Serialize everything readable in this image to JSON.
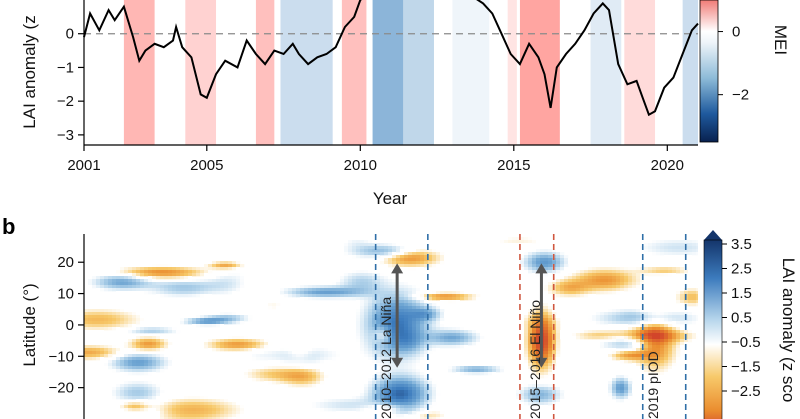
{
  "chart_data": [
    {
      "panel": "",
      "type": "line",
      "xlabel": "Year",
      "ylabel": "LAI anomaly (z",
      "xlim": [
        2001,
        2021
      ],
      "ylim": [
        -3.3,
        1.0
      ],
      "x_ticks": [
        "2001",
        "2005",
        "2010",
        "2015",
        "2020"
      ],
      "x_tick_values": [
        2001,
        2005,
        2010,
        2015,
        2020
      ],
      "y_ticks": [
        "−3",
        "−2",
        "−1",
        "0"
      ],
      "y_tick_values": [
        -3,
        -2,
        -1,
        0
      ],
      "colorbar": {
        "label": "MEI",
        "ticks": [
          "0",
          "−2"
        ],
        "tick_values": [
          0,
          -2
        ],
        "range": [
          -3.5,
          1.0
        ]
      },
      "series": [
        {
          "color": "#000000",
          "x": [
            2001.0,
            2001.2,
            2001.5,
            2001.8,
            2002.0,
            2002.3,
            2002.6,
            2002.8,
            2003.0,
            2003.3,
            2003.6,
            2003.9,
            2004.0,
            2004.2,
            2004.5,
            2004.8,
            2005.0,
            2005.3,
            2005.6,
            2006.0,
            2006.3,
            2006.6,
            2006.9,
            2007.2,
            2007.5,
            2007.8,
            2008.0,
            2008.3,
            2008.6,
            2008.9,
            2009.2,
            2009.5,
            2009.8,
            2010.0,
            2010.3,
            2010.6,
            2011.0,
            2011.5,
            2012.0,
            2012.5,
            2013.0,
            2013.5,
            2014.0,
            2014.3,
            2014.6,
            2014.9,
            2015.2,
            2015.5,
            2015.8,
            2016.0,
            2016.2,
            2016.4,
            2016.7,
            2017.0,
            2017.3,
            2017.6,
            2017.9,
            2018.1,
            2018.4,
            2018.7,
            2019.0,
            2019.2,
            2019.4,
            2019.6,
            2019.9,
            2020.2,
            2020.5,
            2020.8,
            2021.0
          ],
          "y": [
            -0.1,
            0.6,
            0.1,
            0.7,
            0.4,
            0.8,
            -0.1,
            -0.8,
            -0.5,
            -0.3,
            -0.4,
            -0.2,
            0.2,
            -0.4,
            -0.7,
            -1.8,
            -1.9,
            -1.2,
            -0.8,
            -1.0,
            -0.2,
            -0.6,
            -0.9,
            -0.5,
            -0.6,
            -0.3,
            -0.6,
            -0.9,
            -0.7,
            -0.6,
            -0.4,
            0.2,
            0.5,
            1.0,
            1.2,
            1.4,
            1.3,
            1.5,
            1.2,
            1.4,
            1.3,
            1.2,
            0.9,
            0.6,
            0.0,
            -0.6,
            -0.9,
            -0.3,
            -0.7,
            -1.2,
            -2.2,
            -1.0,
            -0.6,
            -0.3,
            0.1,
            0.6,
            0.9,
            0.7,
            -0.9,
            -1.5,
            -1.4,
            -1.9,
            -2.4,
            -2.3,
            -1.6,
            -1.3,
            -0.6,
            0.1,
            0.3
          ]
        }
      ],
      "mei_bands": [
        {
          "x0": 2002.3,
          "x1": 2003.3,
          "mei": 0.8
        },
        {
          "x0": 2004.3,
          "x1": 2005.3,
          "mei": 0.5
        },
        {
          "x0": 2006.6,
          "x1": 2007.2,
          "mei": 0.7
        },
        {
          "x0": 2007.4,
          "x1": 2009.1,
          "mei": -1.0
        },
        {
          "x0": 2009.4,
          "x1": 2010.2,
          "mei": 0.7
        },
        {
          "x0": 2010.4,
          "x1": 2011.4,
          "mei": -2.2
        },
        {
          "x0": 2011.4,
          "x1": 2012.4,
          "mei": -1.2
        },
        {
          "x0": 2013.0,
          "x1": 2014.2,
          "mei": -0.3
        },
        {
          "x0": 2014.8,
          "x1": 2015.1,
          "mei": 0.3
        },
        {
          "x0": 2015.2,
          "x1": 2016.5,
          "mei": 1.0
        },
        {
          "x0": 2017.5,
          "x1": 2018.5,
          "mei": -0.6
        },
        {
          "x0": 2018.6,
          "x1": 2019.6,
          "mei": 0.4
        },
        {
          "x0": 2020.5,
          "x1": 2021.0,
          "mei": -1.0
        }
      ]
    },
    {
      "panel": "b",
      "type": "heatmap",
      "xlim": [
        2001,
        2021
      ],
      "ylabel": "Latitude (°)",
      "y_ticks": [
        "20",
        "10",
        "0",
        "−10",
        "−20"
      ],
      "y_tick_values": [
        20,
        10,
        0,
        -10,
        -20
      ],
      "ylim": [
        -30,
        29
      ],
      "colorbar": {
        "label": "LAI anomaly (z sco",
        "ticks": [
          "3.5",
          "2.5",
          "1.5",
          "0.5",
          "−0.5",
          "−1.5",
          "−2.5"
        ],
        "tick_values": [
          3.5,
          2.5,
          1.5,
          0.5,
          -0.5,
          -1.5,
          -2.5
        ]
      },
      "annotations": [
        "2010–2012 La Niña",
        "2015–2016 El Niño",
        "2019 pIOD"
      ],
      "event_lines": [
        {
          "x": 2010.5,
          "color": "#2f6fa8"
        },
        {
          "x": 2012.2,
          "color": "#2f6fa8"
        },
        {
          "x": 2015.2,
          "color": "#d0573f"
        },
        {
          "x": 2016.3,
          "color": "#d0573f"
        },
        {
          "x": 2019.2,
          "color": "#2f6fa8"
        },
        {
          "x": 2020.6,
          "color": "#2f6fa8"
        }
      ],
      "arrows": [
        {
          "x": 2011.2,
          "y_from": -13,
          "y_to": 19
        },
        {
          "x": 2015.9,
          "y_from": -13,
          "y_to": 19
        }
      ]
    }
  ]
}
